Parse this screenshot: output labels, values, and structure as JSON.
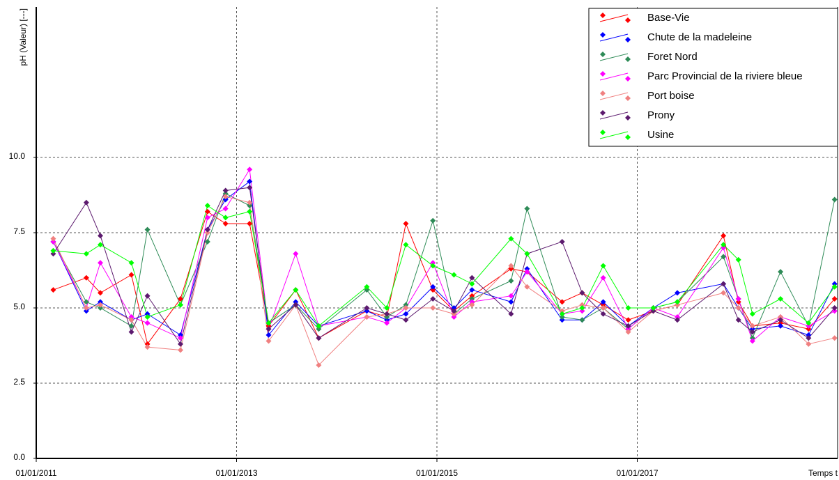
{
  "chart_data": {
    "type": "line",
    "ylabel": "pH (Valeur) [---]",
    "xlabel": "Temps t",
    "xlim": [
      2011,
      2019
    ],
    "xticks": [
      {
        "value": 2011,
        "label": "01/01/2011"
      },
      {
        "value": 2013,
        "label": "01/01/2013"
      },
      {
        "value": 2015,
        "label": "01/01/2015"
      },
      {
        "value": 2017,
        "label": "01/01/2017"
      }
    ],
    "ylim": [
      0,
      15
    ],
    "yticks": [
      {
        "value": 0,
        "label": "0.0"
      },
      2.5,
      {
        "value": 5,
        "label": "5.0"
      },
      7.5,
      {
        "value": 10,
        "label": "10.0"
      }
    ],
    "grid": true,
    "legend": "upper right",
    "x": [
      2011.17,
      2011.5,
      2011.64,
      2011.95,
      2012.11,
      2012.44,
      2012.71,
      2012.89,
      2013.13,
      2013.32,
      2013.59,
      2013.82,
      2014.3,
      2014.5,
      2014.69,
      2014.96,
      2015.17,
      2015.35,
      2015.74,
      2015.9,
      2016.25,
      2016.45,
      2016.66,
      2016.91,
      2017.16,
      2017.4,
      2017.86,
      2018.01,
      2018.15,
      2018.43,
      2018.71,
      2018.97
    ],
    "series": [
      {
        "name": "Base-Vie",
        "color": "#ff0000",
        "values": [
          5.6,
          6.0,
          5.5,
          6.1,
          3.8,
          5.3,
          8.2,
          7.8,
          7.8,
          4.4,
          5.6,
          4.0,
          4.9,
          4.7,
          7.8,
          5.6,
          4.9,
          5.4,
          6.3,
          6.2,
          5.2,
          5.5,
          5.1,
          4.6,
          4.9,
          5.1,
          7.4,
          5.2,
          4.4,
          4.5,
          4.3,
          5.3
        ]
      },
      {
        "name": "Chute de la madeleine",
        "color": "#0000ff",
        "values": [
          7.2,
          4.9,
          5.2,
          4.6,
          4.8,
          4.1,
          7.6,
          8.6,
          9.2,
          4.1,
          5.2,
          4.4,
          4.9,
          4.6,
          4.8,
          5.7,
          5.0,
          5.6,
          5.2,
          6.3,
          4.6,
          4.6,
          5.2,
          4.4,
          5.0,
          5.5,
          5.8,
          5.0,
          4.3,
          4.4,
          4.1,
          5.8
        ]
      },
      {
        "name": "Foret Nord",
        "color": "#2e8b57",
        "values": [
          7.2,
          5.2,
          5.0,
          4.4,
          7.6,
          5.1,
          7.2,
          8.8,
          8.4,
          4.5,
          5.1,
          4.3,
          5.6,
          4.7,
          5.1,
          7.9,
          4.8,
          5.3,
          5.9,
          8.3,
          4.7,
          4.6,
          5.0,
          4.3,
          5.0,
          5.2,
          6.7,
          5.3,
          4.0,
          6.2,
          4.4,
          8.6
        ]
      },
      {
        "name": "Parc Provincial de la riviere bleue",
        "color": "#ff00ff",
        "values": [
          7.2,
          5.0,
          6.5,
          4.7,
          4.5,
          4.0,
          8.0,
          8.3,
          9.6,
          4.3,
          6.8,
          4.4,
          4.7,
          4.5,
          5.0,
          6.5,
          4.7,
          5.2,
          5.4,
          6.2,
          4.8,
          4.9,
          6.0,
          4.3,
          5.0,
          4.7,
          7.0,
          5.3,
          3.9,
          4.7,
          4.4,
          4.9
        ]
      },
      {
        "name": "Port boise",
        "color": "#f08080",
        "values": [
          7.3,
          5.0,
          5.1,
          4.6,
          3.7,
          3.6,
          7.5,
          8.7,
          8.5,
          3.9,
          5.1,
          3.1,
          4.7,
          4.8,
          5.0,
          5.0,
          4.8,
          5.1,
          6.4,
          5.7,
          4.9,
          5.1,
          5.0,
          4.2,
          4.9,
          5.1,
          5.5,
          5.0,
          4.4,
          4.7,
          3.8,
          4.0
        ]
      },
      {
        "name": "Prony",
        "color": "#5c1a6e",
        "values": [
          6.8,
          8.5,
          7.4,
          4.2,
          5.4,
          3.8,
          7.6,
          8.9,
          9.0,
          4.3,
          5.1,
          4.0,
          5.0,
          4.8,
          4.6,
          5.3,
          4.9,
          6.0,
          4.8,
          6.8,
          7.2,
          5.5,
          4.8,
          4.4,
          4.9,
          4.6,
          5.8,
          4.6,
          4.2,
          4.6,
          4.0,
          5.0
        ]
      },
      {
        "name": "Usine",
        "color": "#00ff00",
        "values": [
          6.9,
          6.8,
          7.1,
          6.5,
          4.7,
          5.1,
          8.4,
          8.0,
          8.2,
          4.5,
          5.6,
          4.4,
          5.7,
          5.0,
          7.1,
          6.4,
          6.1,
          5.8,
          7.3,
          6.8,
          4.8,
          5.0,
          6.4,
          5.0,
          5.0,
          5.2,
          7.1,
          6.6,
          4.8,
          5.3,
          4.5,
          5.7
        ]
      }
    ]
  }
}
